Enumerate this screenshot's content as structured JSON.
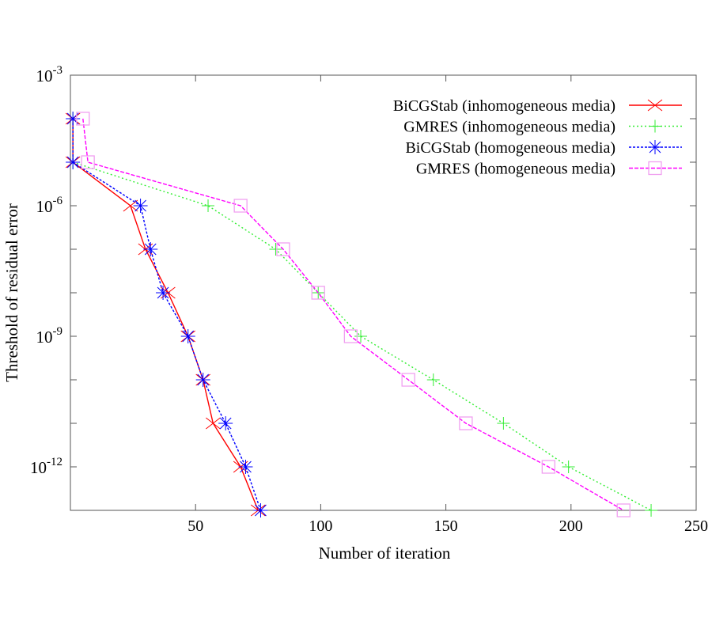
{
  "chart_data": {
    "type": "line",
    "title": "",
    "xlabel": "Number of iteration",
    "ylabel": "Threshold of residual error",
    "xlim": [
      0,
      250
    ],
    "ylim_exponent": [
      -13,
      -3
    ],
    "yscale": "log",
    "grid": false,
    "legend_position": "top-right",
    "x_ticks": [
      50,
      100,
      150,
      200,
      250
    ],
    "y_tick_labels": [
      {
        "exp": -3,
        "base": "10",
        "sup": "-3"
      },
      {
        "exp": -6,
        "base": "10",
        "sup": "-6"
      },
      {
        "exp": -9,
        "base": "10",
        "sup": "-9"
      },
      {
        "exp": -12,
        "base": "10",
        "sup": "-12"
      }
    ],
    "y_minor_exponents": [
      -4,
      -5,
      -7,
      -8,
      -10,
      -11
    ],
    "series": [
      {
        "name": "BiCGStab (inhomogeneous media)",
        "color": "#ff0000",
        "marker": "x",
        "dash": "",
        "x": [
          1,
          1,
          24,
          30,
          39,
          47,
          53,
          57,
          68,
          75
        ],
        "y_exp": [
          -4,
          -5,
          -6,
          -7,
          -8,
          -9,
          -10,
          -11,
          -12,
          -13
        ]
      },
      {
        "name": "GMRES (inhomogeneous media)",
        "color": "#33ee33",
        "marker": "plus",
        "dash": "2,3",
        "x": [
          1,
          1,
          55,
          82,
          99,
          116,
          145,
          173,
          199,
          232
        ],
        "y_exp": [
          -4,
          -5,
          -6,
          -7,
          -8,
          -9,
          -10,
          -11,
          -12,
          -13
        ]
      },
      {
        "name": "BiCGStab (homogeneous media)",
        "color": "#0000ff",
        "marker": "star",
        "dash": "3,2",
        "x": [
          1,
          1,
          28,
          32,
          37,
          47,
          53,
          62,
          70,
          76
        ],
        "y_exp": [
          -4,
          -5,
          -6,
          -7,
          -8,
          -9,
          -10,
          -11,
          -12,
          -13
        ]
      },
      {
        "name": "GMRES (homogeneous media)",
        "color": "#ff00ff",
        "marker": "square",
        "dash": "5,2",
        "x": [
          5,
          7,
          68,
          85,
          99,
          112,
          135,
          158,
          191,
          221
        ],
        "y_exp": [
          -4,
          -5,
          -6,
          -7,
          -8,
          -9,
          -10,
          -11,
          -12,
          -13
        ]
      }
    ]
  }
}
